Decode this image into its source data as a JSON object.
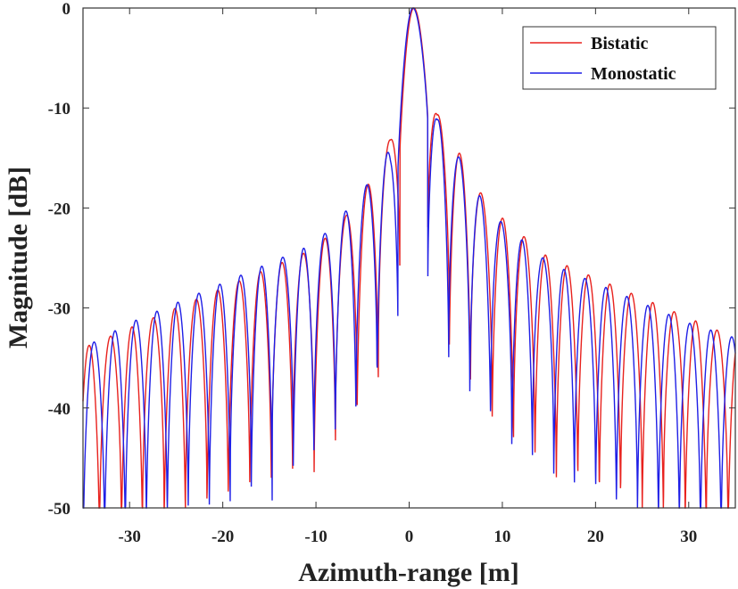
{
  "chart_data": {
    "type": "line",
    "xlabel": "Azimuth-range [m]",
    "ylabel": "Magnitude [dB]",
    "xlim": [
      -35,
      35
    ],
    "ylim": [
      -50,
      0
    ],
    "xticks": [
      -30,
      -20,
      -10,
      0,
      10,
      20,
      30
    ],
    "yticks": [
      0,
      -10,
      -20,
      -30,
      -40,
      -50
    ],
    "grid": false,
    "legend_position": "top-right",
    "mainlobe_peak": {
      "x": 0.5,
      "y": 0
    },
    "series": [
      {
        "name": "Bistatic",
        "color": "#e8221e",
        "mainlobe_offset": 0.5,
        "mainlobe_halfwidth": 1.5,
        "lobe_spacing": 2.3,
        "envelope": [
          [
            -35,
            -34
          ],
          [
            -30,
            -32
          ],
          [
            -25,
            -30
          ],
          [
            -20,
            -28
          ],
          [
            -15,
            -26
          ],
          [
            -10,
            -24
          ],
          [
            -8,
            -22
          ],
          [
            -6,
            -20
          ],
          [
            -4,
            -17
          ],
          [
            -2,
            -13
          ],
          [
            1,
            0
          ],
          [
            3,
            -10.5
          ],
          [
            6,
            -15.5
          ],
          [
            8,
            -19
          ],
          [
            10,
            -21
          ],
          [
            15,
            -25
          ],
          [
            20,
            -27
          ],
          [
            25,
            -29
          ],
          [
            30,
            -31
          ],
          [
            35,
            -33
          ]
        ]
      },
      {
        "name": "Monostatic",
        "color": "#1f1fe6",
        "mainlobe_offset": 0.4,
        "mainlobe_halfwidth": 1.6,
        "lobe_spacing": 2.25,
        "envelope": [
          [
            -35,
            -34
          ],
          [
            -30,
            -31.5
          ],
          [
            -25,
            -29.5
          ],
          [
            -20,
            -27.5
          ],
          [
            -15,
            -25.5
          ],
          [
            -10,
            -23.5
          ],
          [
            -8,
            -21.5
          ],
          [
            -6,
            -19.5
          ],
          [
            -4,
            -17
          ],
          [
            -2,
            -14
          ],
          [
            1,
            0
          ],
          [
            3,
            -11
          ],
          [
            6,
            -16
          ],
          [
            8,
            -19.5
          ],
          [
            10,
            -21.5
          ],
          [
            15,
            -25.5
          ],
          [
            20,
            -27.5
          ],
          [
            25,
            -29.5
          ],
          [
            30,
            -31.5
          ],
          [
            35,
            -33
          ]
        ]
      }
    ]
  }
}
